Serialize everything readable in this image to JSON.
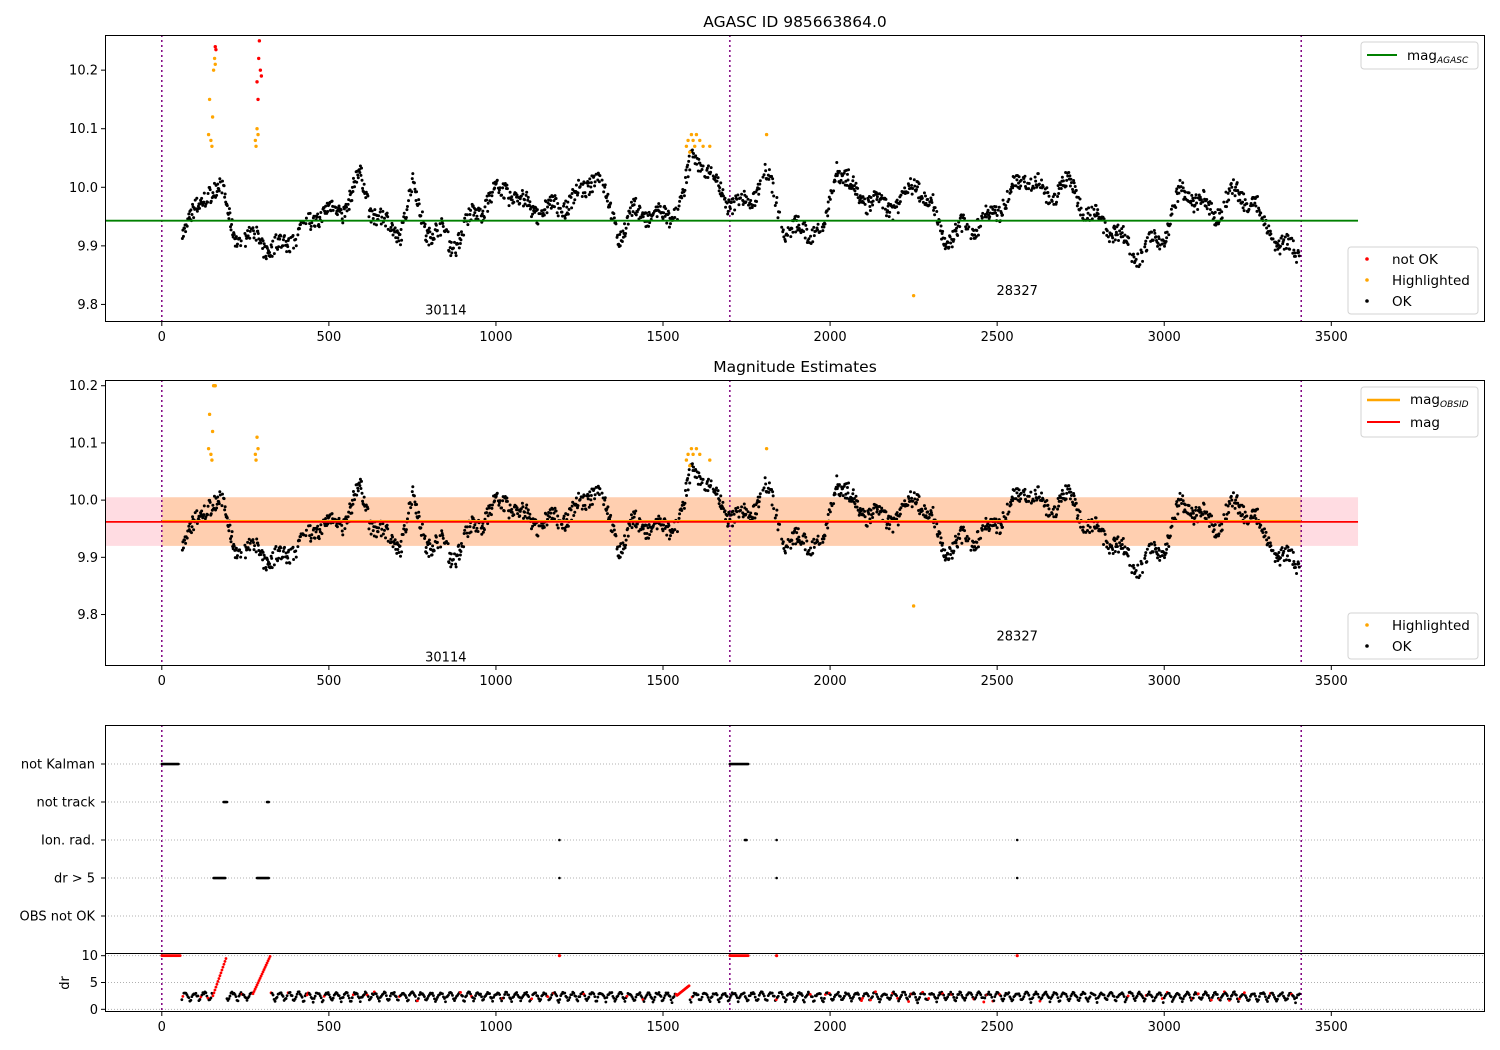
{
  "colors": {
    "ok": "#000000",
    "highlighted": "#ffa500",
    "not_ok": "#ff0000",
    "agasc_line": "#008000",
    "obsid_line": "#ffa500",
    "mag_line": "#ff0000",
    "band_pink": "#ffc0cb",
    "band_orange": "#ffa500",
    "obs_boundary": "#800080"
  },
  "chart_data": [
    {
      "type": "scatter",
      "panel": "top",
      "title": "AGASC ID 985663864.0",
      "xlim": [
        -170,
        3960
      ],
      "ylim": [
        9.77,
        10.26
      ],
      "xticks": [
        "0",
        "500",
        "1000",
        "1500",
        "2000",
        "2500",
        "3000",
        "3500"
      ],
      "yticks": [
        "9.8",
        "9.9",
        "10.0",
        "10.1",
        "10.2"
      ],
      "obs_boundaries": [
        0,
        1700,
        3410
      ],
      "obsid_labels": [
        {
          "x": 850,
          "y": 9.79,
          "text": "30114"
        },
        {
          "x": 2560,
          "y": 9.823,
          "text": "28327"
        }
      ],
      "hline": {
        "label": "mag",
        "sub": "AGASC",
        "y": 9.943,
        "x_range": [
          0,
          3580
        ]
      },
      "legend_series": [
        {
          "label": "mag",
          "sub": "AGASC"
        }
      ],
      "legend_points": [
        "not OK",
        "Highlighted",
        "OK"
      ],
      "highlighted_points": [
        [
          140,
          10.09
        ],
        [
          143,
          10.15
        ],
        [
          147,
          10.08
        ],
        [
          150,
          10.07
        ],
        [
          152,
          10.12
        ],
        [
          155,
          10.2
        ],
        [
          158,
          10.22
        ],
        [
          160,
          10.21
        ],
        [
          280,
          10.08
        ],
        [
          282,
          10.07
        ],
        [
          285,
          10.1
        ],
        [
          288,
          10.09
        ],
        [
          1570,
          10.07
        ],
        [
          1575,
          10.08
        ],
        [
          1580,
          10.06
        ],
        [
          1585,
          10.09
        ],
        [
          1590,
          10.08
        ],
        [
          1595,
          10.07
        ],
        [
          1600,
          10.09
        ],
        [
          1610,
          10.08
        ],
        [
          1620,
          10.07
        ],
        [
          1640,
          10.07
        ],
        [
          1810,
          10.09
        ],
        [
          2250,
          9.815
        ]
      ],
      "not_ok_points": [
        [
          160,
          10.24
        ],
        [
          162,
          10.235
        ],
        [
          285,
          10.18
        ],
        [
          290,
          10.22
        ],
        [
          292,
          10.25
        ],
        [
          295,
          10.2
        ],
        [
          298,
          10.19
        ],
        [
          288,
          10.15
        ]
      ]
    },
    {
      "type": "scatter",
      "panel": "middle",
      "title": "Magnitude Estimates",
      "xlim": [
        -170,
        3960
      ],
      "ylim": [
        9.71,
        10.21
      ],
      "xticks": [
        "0",
        "500",
        "1000",
        "1500",
        "2000",
        "2500",
        "3000",
        "3500"
      ],
      "yticks": [
        "9.8",
        "9.9",
        "10.0",
        "10.1",
        "10.2"
      ],
      "obs_boundaries": [
        0,
        1700,
        3410
      ],
      "obsid_labels": [
        {
          "x": 850,
          "y": 9.725,
          "text": "30114"
        },
        {
          "x": 2560,
          "y": 9.762,
          "text": "28327"
        }
      ],
      "band": {
        "y_low": 9.92,
        "y_high": 10.005,
        "x_range": [
          -170,
          3580
        ]
      },
      "hline_obsid": {
        "label": "mag",
        "sub": "OBSID",
        "y": 9.963
      },
      "hline_mag": {
        "label": "mag",
        "y": 9.962
      },
      "legend_series": [
        {
          "label": "mag",
          "sub": "OBSID"
        },
        {
          "label": "mag"
        }
      ],
      "legend_points": [
        "Highlighted",
        "OK"
      ],
      "highlighted_points": [
        [
          140,
          10.09
        ],
        [
          143,
          10.15
        ],
        [
          147,
          10.08
        ],
        [
          150,
          10.07
        ],
        [
          152,
          10.12
        ],
        [
          155,
          10.2
        ],
        [
          158,
          10.2
        ],
        [
          160,
          10.2
        ],
        [
          280,
          10.08
        ],
        [
          282,
          10.07
        ],
        [
          285,
          10.11
        ],
        [
          288,
          10.09
        ],
        [
          1570,
          10.07
        ],
        [
          1575,
          10.08
        ],
        [
          1580,
          10.06
        ],
        [
          1585,
          10.09
        ],
        [
          1590,
          10.08
        ],
        [
          1600,
          10.09
        ],
        [
          1610,
          10.08
        ],
        [
          1640,
          10.07
        ],
        [
          1810,
          10.09
        ],
        [
          2250,
          9.815
        ]
      ]
    },
    {
      "type": "scatter",
      "panel": "flags",
      "categories": [
        "not Kalman",
        "not track",
        "Ion. rad.",
        "dr > 5",
        "OBS not OK"
      ],
      "xlim": [
        -170,
        3960
      ],
      "obs_boundaries": [
        0,
        1700,
        3410
      ],
      "flag_points": {
        "not Kalman": [
          [
            0,
            50
          ],
          [
            1700,
            1755
          ]
        ],
        "not track": [
          [
            185,
            195
          ],
          [
            315,
            322
          ]
        ],
        "Ion. rad.": [
          [
            1190,
            1190
          ],
          [
            1745,
            1752
          ],
          [
            1840,
            1840
          ],
          [
            2560,
            2560
          ]
        ],
        "dr > 5": [
          [
            155,
            190
          ],
          [
            285,
            320
          ],
          [
            1190,
            1190
          ],
          [
            1840,
            1840
          ],
          [
            2560,
            2560
          ]
        ],
        "OBS not OK": []
      }
    },
    {
      "type": "scatter",
      "panel": "dr",
      "ylabel": "dr",
      "xlim": [
        -170,
        3960
      ],
      "ylim": [
        -0.5,
        10.5
      ],
      "yticks": [
        "0",
        "5",
        "10"
      ],
      "xticks": [
        "0",
        "500",
        "1000",
        "1500",
        "2000",
        "2500",
        "3000",
        "3500"
      ],
      "obs_boundaries": [
        0,
        1700,
        3410
      ]
    }
  ]
}
